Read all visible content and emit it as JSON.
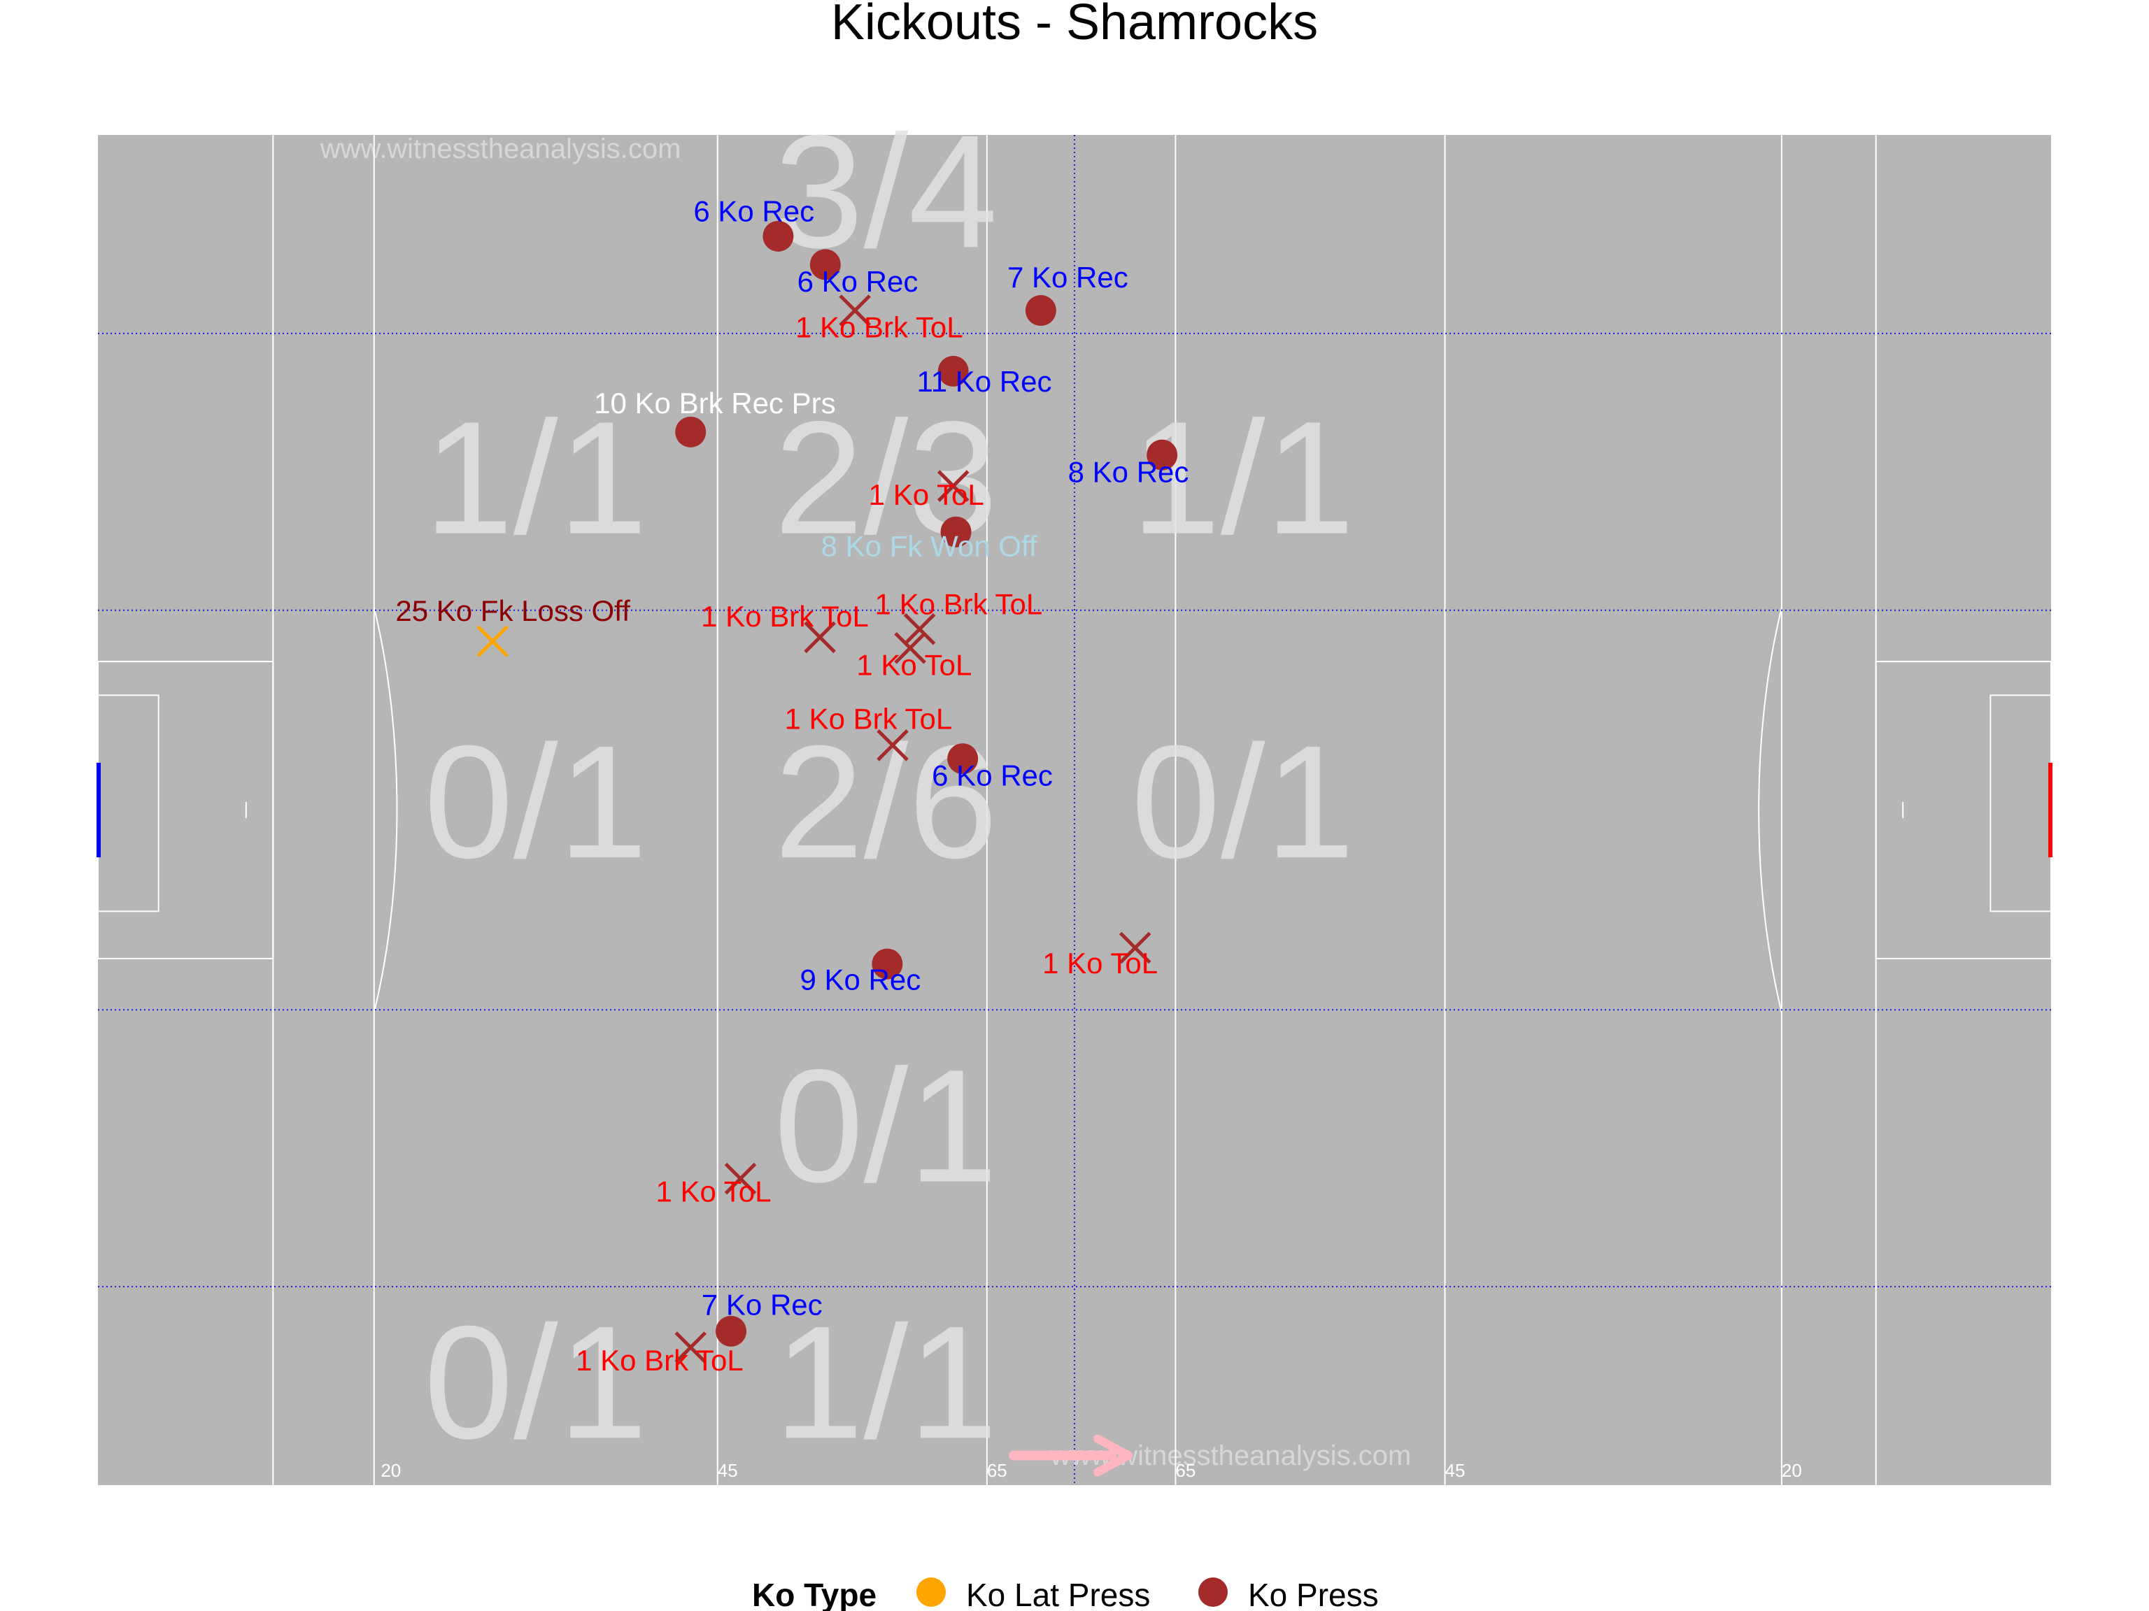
{
  "colors": {
    "pitch": "#b6b6b6",
    "lines": "#ffffff",
    "grid": "#1d1dd6",
    "ko_press": "#a52a2a",
    "ko_lat_press": "#ffa500",
    "label_rec": "#0000ff",
    "label_tol": "#ff0000",
    "label_prs": "#ffffff",
    "label_won": "#add8e6",
    "label_loss": "#8b0000",
    "home_goal": "#0000ff",
    "away_goal": "#ff0000",
    "arrow": "#ffb6c1"
  },
  "chart_data": {
    "type": "scatter",
    "title": "Kickouts - Shamrocks",
    "xlim": [
      0,
      145
    ],
    "ylim": [
      0,
      100
    ],
    "pitch_line_labels": [
      {
        "x": 21,
        "text": "20"
      },
      {
        "x": 46,
        "text": "45"
      },
      {
        "x": 66,
        "text": "65"
      },
      {
        "x": 80,
        "text": "65"
      },
      {
        "x": 100,
        "text": "45"
      },
      {
        "x": 125,
        "text": "20"
      }
    ],
    "watermarks": [
      {
        "text": "www.witnesstheanalysis.com",
        "x": 16.5,
        "y": 98.3
      },
      {
        "text": "www.witnesstheanalysis.com",
        "x": 97.5,
        "y": 1.5
      }
    ],
    "zone_summaries": [
      {
        "text": "3/4",
        "x": 58.5,
        "y": 91.7
      },
      {
        "text": "1/1",
        "x": 32.5,
        "y": 70.5
      },
      {
        "text": "2/3",
        "x": 58.5,
        "y": 70.5
      },
      {
        "text": "1/1",
        "x": 85,
        "y": 70.5
      },
      {
        "text": "0/1",
        "x": 32.5,
        "y": 46.5
      },
      {
        "text": "2/6",
        "x": 58.5,
        "y": 46.5
      },
      {
        "text": "0/1",
        "x": 85,
        "y": 46.5
      },
      {
        "text": "0/1",
        "x": 58.5,
        "y": 22.5
      },
      {
        "text": "0/1",
        "x": 32.5,
        "y": 3.5
      },
      {
        "text": "1/1",
        "x": 58.5,
        "y": 3.5
      }
    ],
    "points": [
      {
        "x": 50.5,
        "y": 92.5,
        "shape": "dot",
        "type": "Ko Press",
        "label": "6 Ko Rec",
        "lx": 48.7,
        "ly": 93.6,
        "lc": "label_rec"
      },
      {
        "x": 54.0,
        "y": 90.4,
        "shape": "dot",
        "type": "Ko Press",
        "label": "6 Ko Rec",
        "lx": 56.4,
        "ly": 88.4,
        "lc": "label_rec"
      },
      {
        "x": 70.0,
        "y": 87.0,
        "shape": "dot",
        "type": "Ko Press",
        "label": "7 Ko Rec",
        "lx": 72.0,
        "ly": 88.7,
        "lc": "label_rec"
      },
      {
        "x": 56.2,
        "y": 87.0,
        "shape": "cross",
        "type": "Ko Press",
        "label": "1 Ko Brk ToL",
        "lx": 58.0,
        "ly": 85.0,
        "lc": "label_tol"
      },
      {
        "x": 63.5,
        "y": 82.5,
        "shape": "dot",
        "type": "Ko Press",
        "label": "11 Ko Rec",
        "lx": 65.8,
        "ly": 81.0,
        "lc": "label_rec"
      },
      {
        "x": 44.0,
        "y": 78.0,
        "shape": "dot",
        "type": "Ko Press",
        "label": "10 Ko Brk Rec Prs",
        "lx": 45.8,
        "ly": 79.4,
        "lc": "label_prs"
      },
      {
        "x": 79.0,
        "y": 76.3,
        "shape": "dot",
        "type": "Ko Press",
        "label": "8 Ko Rec",
        "lx": 76.5,
        "ly": 74.3,
        "lc": "label_rec"
      },
      {
        "x": 63.5,
        "y": 74.0,
        "shape": "cross",
        "type": "Ko Press",
        "label": "1 Ko ToL",
        "lx": 61.5,
        "ly": 72.6,
        "lc": "label_tol"
      },
      {
        "x": 63.7,
        "y": 70.6,
        "shape": "dot",
        "type": "Ko Press",
        "label": "8 Ko Fk Won Off",
        "lx": 61.7,
        "ly": 68.8,
        "lc": "label_won"
      },
      {
        "x": 29.3,
        "y": 62.5,
        "shape": "cross",
        "type": "Ko Lat Press",
        "label": "25 Ko Fk Loss Off",
        "lx": 30.8,
        "ly": 64.0,
        "lc": "label_loss"
      },
      {
        "x": 53.6,
        "y": 62.8,
        "shape": "cross",
        "type": "Ko Press",
        "label": "1 Ko Brk ToL",
        "lx": 51.0,
        "ly": 63.6,
        "lc": "label_tol"
      },
      {
        "x": 61.0,
        "y": 63.4,
        "shape": "cross",
        "type": "Ko Press",
        "label": "1 Ko Brk ToL",
        "lx": 63.9,
        "ly": 64.5,
        "lc": "label_tol"
      },
      {
        "x": 60.3,
        "y": 62.0,
        "shape": "cross",
        "type": "Ko Press",
        "label": "1 Ko ToL",
        "lx": 60.6,
        "ly": 60.0,
        "lc": "label_tol"
      },
      {
        "x": 59.0,
        "y": 54.8,
        "shape": "cross",
        "type": "Ko Press",
        "label": "1 Ko Brk ToL",
        "lx": 57.2,
        "ly": 56.0,
        "lc": "label_tol"
      },
      {
        "x": 64.2,
        "y": 53.8,
        "shape": "dot",
        "type": "Ko Press",
        "label": "6 Ko Rec",
        "lx": 66.4,
        "ly": 51.8,
        "lc": "label_rec"
      },
      {
        "x": 58.6,
        "y": 38.6,
        "shape": "dot",
        "type": "Ko Press",
        "label": "9 Ko Rec",
        "lx": 56.6,
        "ly": 36.7,
        "lc": "label_rec"
      },
      {
        "x": 77.0,
        "y": 39.8,
        "shape": "cross",
        "type": "Ko Press",
        "label": "1 Ko ToL",
        "lx": 74.4,
        "ly": 37.9,
        "lc": "label_tol"
      },
      {
        "x": 47.7,
        "y": 22.7,
        "shape": "cross",
        "type": "Ko Press",
        "label": "1 Ko ToL",
        "lx": 45.7,
        "ly": 21.0,
        "lc": "label_tol"
      },
      {
        "x": 47.0,
        "y": 11.4,
        "shape": "dot",
        "type": "Ko Press",
        "label": "7 Ko Rec",
        "lx": 49.3,
        "ly": 12.6,
        "lc": "label_rec"
      },
      {
        "x": 44.0,
        "y": 10.2,
        "shape": "cross",
        "type": "Ko Press",
        "label": "1 Ko Brk ToL",
        "lx": 41.7,
        "ly": 8.5,
        "lc": "label_tol"
      }
    ],
    "legend": {
      "position": "bottom",
      "title": "Ko Type",
      "entries": [
        {
          "label": "Ko Lat Press",
          "color": "#ffa500"
        },
        {
          "label": "Ko Press",
          "color": "#a52a2a"
        }
      ]
    }
  }
}
